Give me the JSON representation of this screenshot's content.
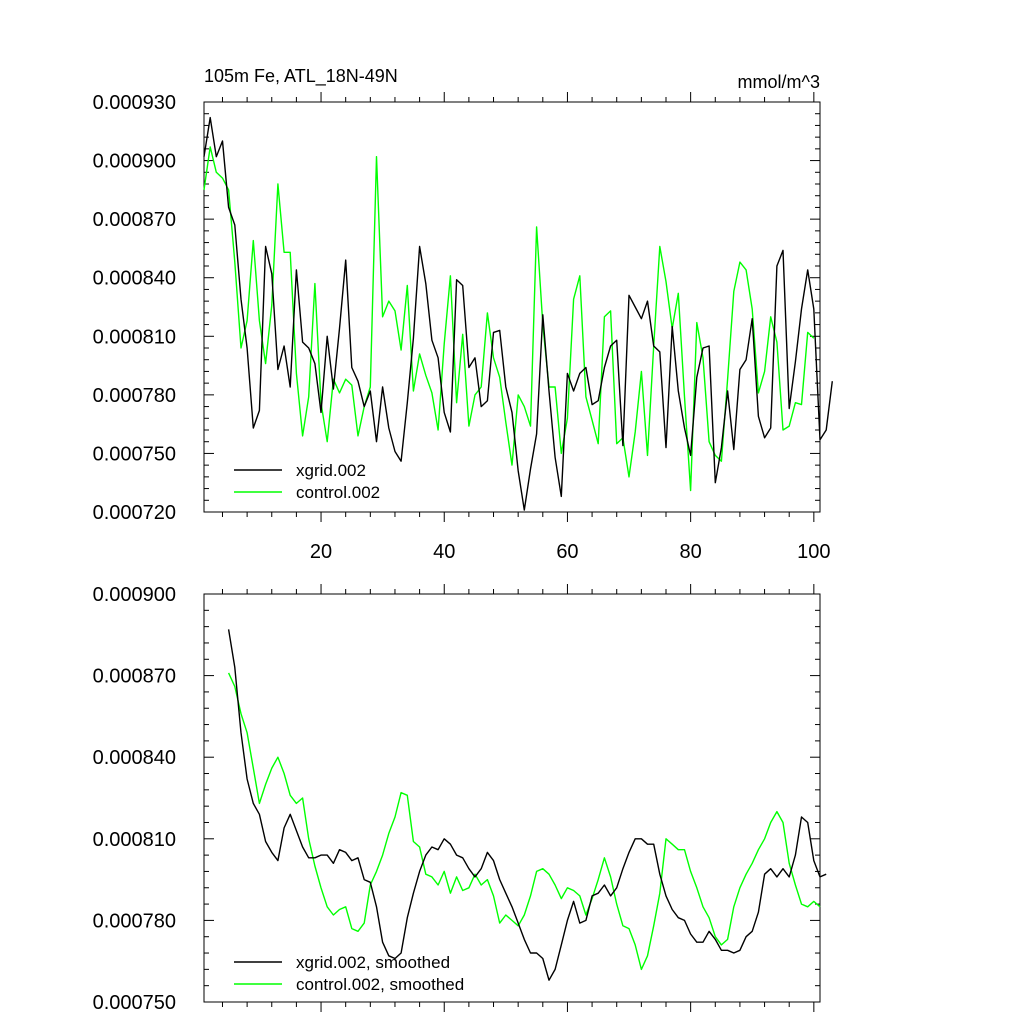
{
  "chart_data": [
    {
      "type": "line",
      "title": "105m Fe, ATL_18N-49N",
      "units": "mmol/m^3",
      "xlim": [
        1,
        101
      ],
      "ylim": [
        0.00072,
        0.00093
      ],
      "x_ticks": [
        20,
        40,
        60,
        80,
        100
      ],
      "x_tick_labels": [
        "20",
        "40",
        "60",
        "80",
        "100"
      ],
      "y_ticks": [
        0.00072,
        0.00075,
        0.00078,
        0.00081,
        0.00084,
        0.00087,
        0.0009,
        0.00093
      ],
      "y_tick_labels": [
        "0.000720",
        "0.000750",
        "0.000780",
        "0.000810",
        "0.000840",
        "0.000870",
        "0.000900",
        "0.000930"
      ],
      "legend_position": "bottom-left",
      "series": [
        {
          "name": "xgrid.002",
          "color": "#000000",
          "x_start": 1,
          "values": [
            0.000902,
            0.000922,
            0.000902,
            0.00091,
            0.000876,
            0.000867,
            0.000829,
            0.000804,
            0.000763,
            0.000772,
            0.000856,
            0.000842,
            0.000793,
            0.000805,
            0.000784,
            0.000844,
            0.000807,
            0.000804,
            0.000796,
            0.000771,
            0.00081,
            0.000783,
            0.000814,
            0.000849,
            0.000794,
            0.000787,
            0.000774,
            0.000782,
            0.000756,
            0.000784,
            0.000763,
            0.000751,
            0.000746,
            0.000776,
            0.000809,
            0.000856,
            0.000837,
            0.000808,
            0.000799,
            0.000771,
            0.000761,
            0.000839,
            0.000836,
            0.000794,
            0.000799,
            0.000774,
            0.000777,
            0.000812,
            0.000813,
            0.000784,
            0.000771,
            0.000741,
            0.000721,
            0.000742,
            0.00076,
            0.000821,
            0.000782,
            0.000748,
            0.000728,
            0.000791,
            0.000782,
            0.000791,
            0.000794,
            0.000775,
            0.000777,
            0.000794,
            0.000805,
            0.000808,
            0.000754,
            0.000831,
            0.000825,
            0.000819,
            0.000828,
            0.000805,
            0.000802,
            0.000753,
            0.000815,
            0.000782,
            0.000763,
            0.000749,
            0.000789,
            0.000804,
            0.000805,
            0.000735,
            0.000753,
            0.000782,
            0.000752,
            0.000793,
            0.000798,
            0.000819,
            0.000769,
            0.000758,
            0.000763,
            0.000846,
            0.000854,
            0.000773,
            0.000797,
            0.000824,
            0.000844,
            0.000824,
            0.000757,
            0.000762,
            0.000787
          ]
        },
        {
          "name": "control.002",
          "color": "#00ff00",
          "x_start": 1,
          "values": [
            0.000885,
            0.000907,
            0.000894,
            0.000891,
            0.000885,
            0.000848,
            0.000804,
            0.000818,
            0.000859,
            0.000818,
            0.000796,
            0.000826,
            0.000888,
            0.000853,
            0.000853,
            0.000791,
            0.000759,
            0.000779,
            0.000837,
            0.000776,
            0.000756,
            0.000788,
            0.000781,
            0.000788,
            0.000785,
            0.000759,
            0.000774,
            0.000784,
            0.000902,
            0.00082,
            0.000828,
            0.000823,
            0.000803,
            0.000836,
            0.000782,
            0.000801,
            0.00079,
            0.000781,
            0.000762,
            0.000806,
            0.000841,
            0.000776,
            0.000811,
            0.000764,
            0.00078,
            0.000784,
            0.000822,
            0.000799,
            0.000789,
            0.000766,
            0.000744,
            0.00078,
            0.000774,
            0.000764,
            0.000866,
            0.000816,
            0.000784,
            0.000784,
            0.00075,
            0.000768,
            0.000829,
            0.000841,
            0.000779,
            0.000767,
            0.000755,
            0.00082,
            0.000823,
            0.000755,
            0.000758,
            0.000738,
            0.000761,
            0.000792,
            0.000749,
            0.000805,
            0.000856,
            0.000838,
            0.000814,
            0.000832,
            0.000779,
            0.000731,
            0.000817,
            0.000799,
            0.000756,
            0.000749,
            0.000746,
            0.000788,
            0.000833,
            0.000848,
            0.000844,
            0.000824,
            0.000781,
            0.000792,
            0.00082,
            0.000807,
            0.000762,
            0.000764,
            0.000776,
            0.000775,
            0.000812,
            0.000809
          ]
        }
      ]
    },
    {
      "type": "line",
      "title": "",
      "xlim": [
        1,
        101
      ],
      "ylim": [
        0.00075,
        0.0009
      ],
      "x_ticks": [
        20,
        40,
        60,
        80,
        100
      ],
      "y_ticks": [
        0.00075,
        0.00078,
        0.00081,
        0.00084,
        0.00087,
        0.0009
      ],
      "y_tick_labels": [
        "0.000750",
        "0.000780",
        "0.000810",
        "0.000840",
        "0.000870",
        "0.000900"
      ],
      "legend_position": "bottom-left",
      "series": [
        {
          "name": "xgrid.002, smoothed",
          "color": "#000000",
          "x_start": 5,
          "values": [
            0.000887,
            0.000873,
            0.000849,
            0.000832,
            0.000823,
            0.000819,
            0.000809,
            0.000805,
            0.000802,
            0.000814,
            0.000819,
            0.000813,
            0.000807,
            0.000803,
            0.000803,
            0.000804,
            0.000804,
            0.000801,
            0.000806,
            0.000805,
            0.000802,
            0.000803,
            0.000795,
            0.000794,
            0.000785,
            0.000772,
            0.000767,
            0.000766,
            0.000768,
            0.000781,
            0.00079,
            0.000798,
            0.000804,
            0.000807,
            0.000806,
            0.00081,
            0.000808,
            0.000804,
            0.000803,
            0.000799,
            0.000796,
            0.000799,
            0.000805,
            0.000802,
            0.000795,
            0.00079,
            0.000785,
            0.000779,
            0.000773,
            0.000768,
            0.000768,
            0.000766,
            0.000758,
            0.000762,
            0.000771,
            0.00078,
            0.000787,
            0.000779,
            0.00078,
            0.000789,
            0.00079,
            0.000793,
            0.000789,
            0.000792,
            0.000799,
            0.000805,
            0.00081,
            0.00081,
            0.000808,
            0.000808,
            0.000797,
            0.000789,
            0.000784,
            0.000781,
            0.00078,
            0.000775,
            0.000772,
            0.000772,
            0.000776,
            0.000773,
            0.000769,
            0.000769,
            0.000768,
            0.000769,
            0.000774,
            0.000776,
            0.000783,
            0.000797,
            0.000799,
            0.000796,
            0.000799,
            0.000796,
            0.000804,
            0.000818,
            0.000816,
            0.000802,
            0.000796,
            0.000797
          ]
        },
        {
          "name": "control.002, smoothed",
          "color": "#00ff00",
          "x_start": 5,
          "values": [
            0.000871,
            0.000866,
            0.000856,
            0.000849,
            0.000836,
            0.000823,
            0.00083,
            0.000836,
            0.00084,
            0.000834,
            0.000826,
            0.000823,
            0.000825,
            0.00081,
            0.0008,
            0.000792,
            0.000785,
            0.000782,
            0.000784,
            0.000785,
            0.000777,
            0.000776,
            0.000779,
            0.000793,
            0.000798,
            0.000804,
            0.000812,
            0.000818,
            0.000827,
            0.000826,
            0.000809,
            0.000807,
            0.000797,
            0.000796,
            0.000793,
            0.000798,
            0.00079,
            0.000796,
            0.000791,
            0.000792,
            0.000797,
            0.000793,
            0.000795,
            0.000789,
            0.000779,
            0.000782,
            0.00078,
            0.000778,
            0.000782,
            0.000789,
            0.000798,
            0.000799,
            0.000797,
            0.000793,
            0.000788,
            0.000792,
            0.000791,
            0.000789,
            0.000782,
            0.000788,
            0.000795,
            0.000803,
            0.000796,
            0.000786,
            0.000778,
            0.000777,
            0.000771,
            0.000762,
            0.000767,
            0.000778,
            0.00079,
            0.00081,
            0.000808,
            0.000806,
            0.000806,
            0.000798,
            0.000792,
            0.000785,
            0.000781,
            0.000774,
            0.000771,
            0.000773,
            0.000785,
            0.000792,
            0.000797,
            0.000801,
            0.000806,
            0.00081,
            0.000816,
            0.00082,
            0.000816,
            0.000801,
            0.000793,
            0.000786,
            0.000785,
            0.000787,
            0.000785
          ]
        }
      ]
    }
  ]
}
